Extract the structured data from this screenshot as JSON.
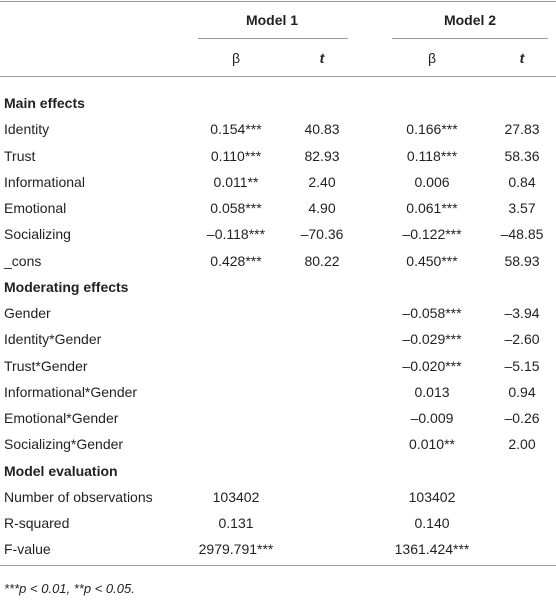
{
  "header": {
    "groups": [
      "Model 1",
      "Model 2"
    ],
    "columns": [
      "β",
      "t",
      "β",
      "t"
    ]
  },
  "sections": [
    {
      "title": "Main effects",
      "rows": [
        [
          "Identity",
          "0.154***",
          "40.83",
          "0.166***",
          "27.83"
        ],
        [
          "Trust",
          "0.110***",
          "82.93",
          "0.118***",
          "58.36"
        ],
        [
          "Informational",
          "0.011**",
          "2.40",
          "0.006",
          "0.84"
        ],
        [
          "Emotional",
          "0.058***",
          "4.90",
          "0.061***",
          "3.57"
        ],
        [
          "Socializing",
          "–0.118***",
          "–70.36",
          "–0.122***",
          "–48.85"
        ],
        [
          "_cons",
          "0.428***",
          "80.22",
          "0.450***",
          "58.93"
        ]
      ]
    },
    {
      "title": "Moderating effects",
      "rows": [
        [
          "Gender",
          null,
          null,
          "–0.058***",
          "–3.94"
        ],
        [
          "Identity*Gender",
          null,
          null,
          "–0.029***",
          "–2.60"
        ],
        [
          "Trust*Gender",
          null,
          null,
          "–0.020***",
          "–5.15"
        ],
        [
          "Informational*Gender",
          null,
          null,
          "0.013",
          "0.94"
        ],
        [
          "Emotional*Gender",
          null,
          null,
          "–0.009",
          "–0.26"
        ],
        [
          "Socializing*Gender",
          null,
          null,
          "0.010**",
          "2.00"
        ]
      ]
    },
    {
      "title": "Model evaluation",
      "rows": [
        [
          "Number of observations",
          "103402",
          null,
          "103402",
          null
        ],
        [
          "R-squared",
          "0.131",
          null,
          "0.140",
          null
        ],
        [
          "F-value",
          "2979.791***",
          null,
          "1361.424***",
          null
        ]
      ]
    }
  ],
  "footnote": "***p < 0.01, **p < 0.05."
}
